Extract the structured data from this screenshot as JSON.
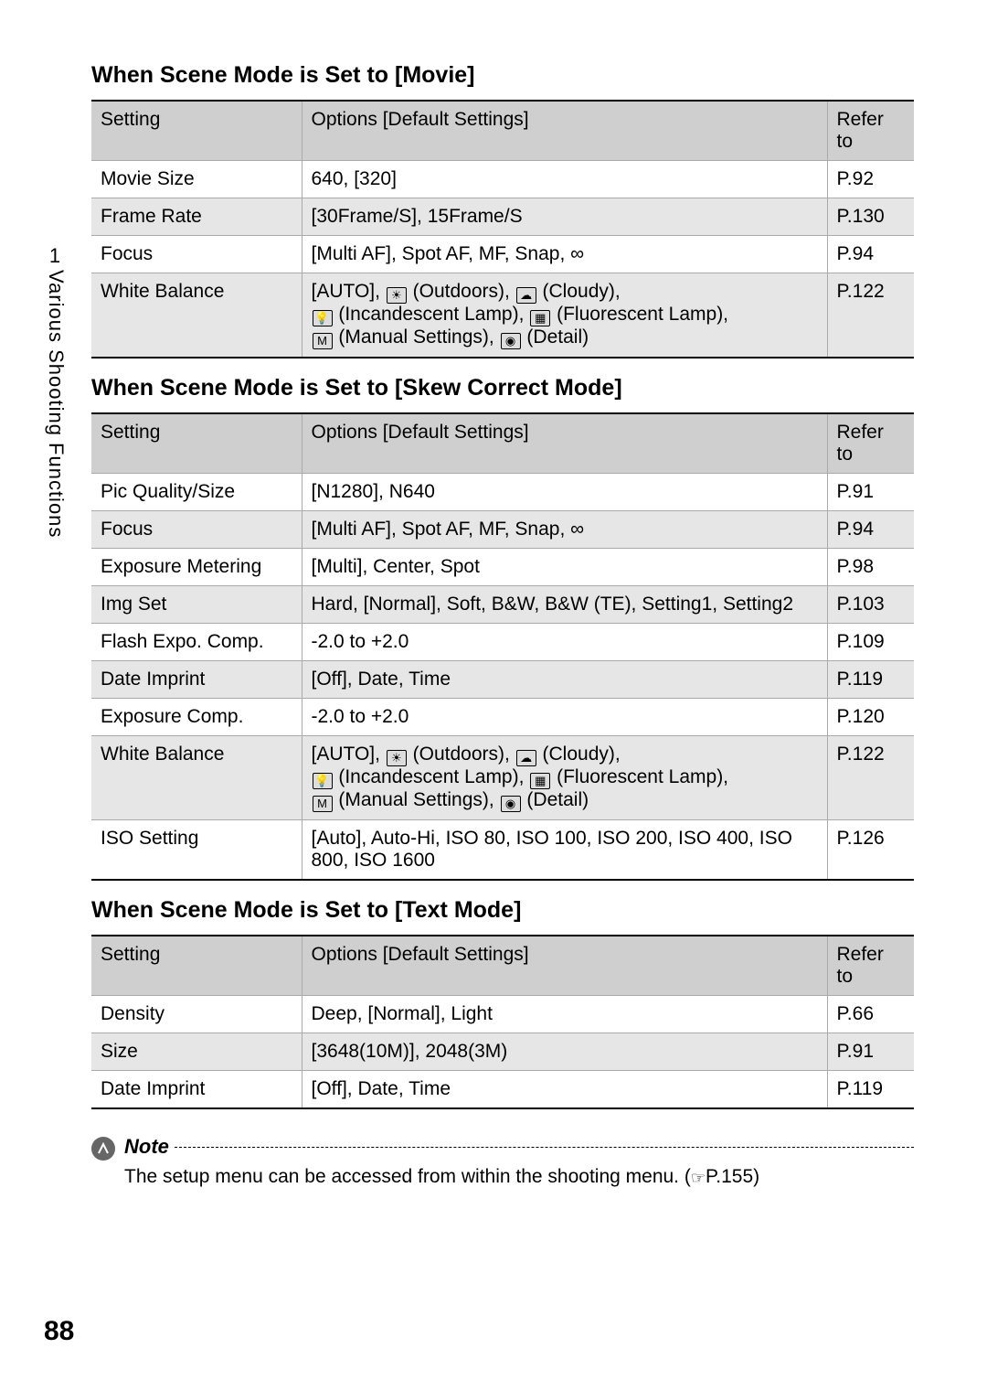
{
  "page_number": "88",
  "side": {
    "chapter": "1",
    "label": "Various Shooting Functions"
  },
  "sections": [
    {
      "heading": "When Scene Mode is Set to [Movie]",
      "header": {
        "setting": "Setting",
        "options": "Options [Default Settings]",
        "refer": "Refer to"
      },
      "rows": [
        {
          "setting": "Movie Size",
          "options_plain": "640, [320]",
          "refer": "P.92"
        },
        {
          "setting": "Frame Rate",
          "options_plain": "[30Frame/S], 15Frame/S",
          "refer": "P.130"
        },
        {
          "setting": "Focus",
          "options_plain": "[Multi AF], Spot AF, MF, Snap, ∞",
          "refer": "P.94"
        },
        {
          "setting": "White Balance",
          "options_wb": true,
          "refer": "P.122"
        }
      ]
    },
    {
      "heading": "When Scene Mode is Set to [Skew Correct Mode]",
      "header": {
        "setting": "Setting",
        "options": "Options [Default Settings]",
        "refer": "Refer to"
      },
      "rows": [
        {
          "setting": "Pic Quality/Size",
          "options_plain": "[N1280], N640",
          "refer": "P.91"
        },
        {
          "setting": "Focus",
          "options_plain": "[Multi AF], Spot AF, MF, Snap, ∞",
          "refer": "P.94"
        },
        {
          "setting": "Exposure Metering",
          "options_plain": "[Multi], Center, Spot",
          "refer": "P.98"
        },
        {
          "setting": "Img Set",
          "options_plain": "Hard, [Normal], Soft, B&W, B&W (TE), Setting1, Setting2",
          "refer": "P.103"
        },
        {
          "setting": "Flash Expo. Comp.",
          "options_plain": "-2.0 to +2.0",
          "refer": "P.109"
        },
        {
          "setting": "Date Imprint",
          "options_plain": "[Off], Date, Time",
          "refer": "P.119"
        },
        {
          "setting": "Exposure Comp.",
          "options_plain": "-2.0 to +2.0",
          "refer": "P.120"
        },
        {
          "setting": "White Balance",
          "options_wb": true,
          "refer": "P.122"
        },
        {
          "setting": "ISO Setting",
          "options_plain": "[Auto], Auto-Hi, ISO 80, ISO 100, ISO 200, ISO 400, ISO 800, ISO 1600",
          "refer": "P.126"
        }
      ]
    },
    {
      "heading": "When Scene Mode is Set to [Text Mode]",
      "header": {
        "setting": "Setting",
        "options": "Options [Default Settings]",
        "refer": "Refer to"
      },
      "rows": [
        {
          "setting": "Density",
          "options_plain": "Deep, [Normal], Light",
          "refer": "P.66"
        },
        {
          "setting": "Size",
          "options_plain": "[3648(10M)], 2048(3M)",
          "refer": "P.91"
        },
        {
          "setting": "Date Imprint",
          "options_plain": "[Off], Date, Time",
          "refer": "P.119"
        }
      ]
    }
  ],
  "wb": {
    "prefix": "[AUTO], ",
    "outdoors": " (Outdoors), ",
    "cloudy": " (Cloudy),",
    "incandescent": " (Incandescent Lamp), ",
    "fluorescent": " (Fluorescent Lamp),",
    "manual": " (Manual Settings), ",
    "detail": " (Detail)",
    "icon_outdoors": "☀",
    "icon_cloudy": "☁",
    "icon_incandescent": "💡",
    "icon_fluorescent": "▦",
    "icon_manual": "M",
    "icon_detail": "◉"
  },
  "note": {
    "label": "Note",
    "text_before": "The setup menu can be accessed from within the shooting menu. (",
    "text_after": "P.155)",
    "hand_icon": "☞"
  },
  "style": {
    "heading_fontsize": 25,
    "body_fontsize": 21,
    "header_bg": "#cfcfcf",
    "row_alt_bg": "#e6e6e6",
    "border_color": "#aaaaaa",
    "thick_border": "#000000"
  }
}
